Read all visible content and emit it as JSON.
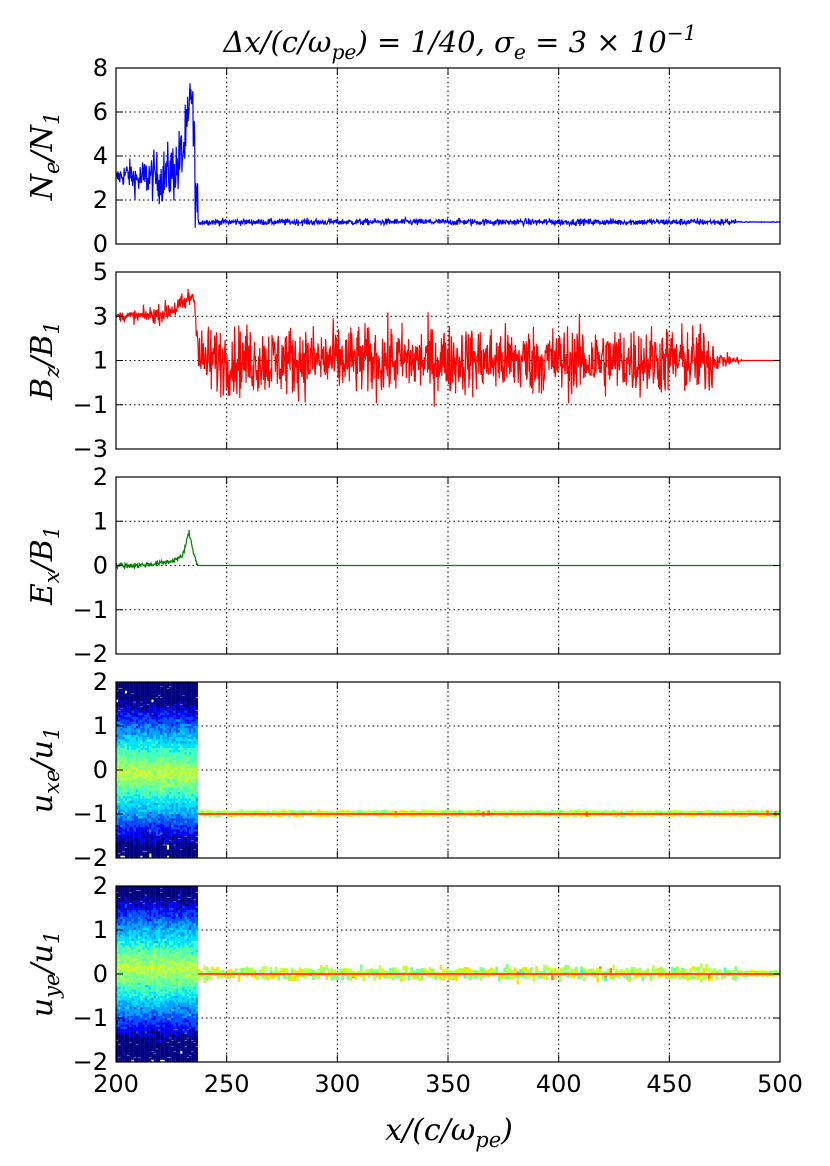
{
  "title": "Δx/(c/ω_pe) = 1/40, σ_e = 3 × 10^-1",
  "title_parts": {
    "a": "Δx/(c/ω",
    "a_sub": "pe",
    "b": ") = 1/40, σ",
    "b_sub": "e",
    "c": " = 3 × 10",
    "c_sup": "−1"
  },
  "colors": {
    "Ne": "#0000ff",
    "Bz": "#ff0000",
    "Ex": "#007f00"
  },
  "chart_data": [
    {
      "type": "line",
      "name": "Ne-panel",
      "ylabel": {
        "main": "N",
        "sub": "e",
        "rest": "/N",
        "sub2": "1"
      },
      "xlim": [
        200,
        500
      ],
      "ylim": [
        0,
        8
      ],
      "yticks": [
        "0",
        "2",
        "4",
        "6",
        "8"
      ],
      "grid": true,
      "x": [
        200,
        205,
        210,
        215,
        220,
        225,
        228,
        231,
        233,
        234,
        235,
        236,
        237,
        238,
        240,
        250,
        300,
        350,
        400,
        450,
        500
      ],
      "y": [
        3.0,
        3.2,
        2.9,
        3.1,
        3.0,
        3.3,
        3.5,
        4.5,
        5.5,
        7.5,
        5.0,
        2.5,
        1.0,
        1.0,
        1.0,
        1.0,
        1.0,
        1.0,
        1.0,
        1.0,
        1.0
      ]
    },
    {
      "type": "line",
      "name": "Bz-panel",
      "ylabel": {
        "main": "B",
        "sub": "z",
        "rest": "/B",
        "sub2": "1"
      },
      "xlim": [
        200,
        500
      ],
      "ylim": [
        -3,
        5
      ],
      "yticks": [
        "−3",
        "−1",
        "1",
        "3",
        "5"
      ],
      "grid": true,
      "x": [
        200,
        210,
        220,
        230,
        235,
        238,
        240,
        260,
        300,
        350,
        400,
        450,
        470,
        480,
        490,
        500
      ],
      "y": [
        3.0,
        3.0,
        3.1,
        3.5,
        4.0,
        1.0,
        1.0,
        1.0,
        1.0,
        1.0,
        1.0,
        1.0,
        1.0,
        1.0,
        1.0,
        1.0
      ]
    },
    {
      "type": "line",
      "name": "Ex-panel",
      "ylabel": {
        "main": "E",
        "sub": "x",
        "rest": "/B",
        "sub2": "1"
      },
      "xlim": [
        200,
        500
      ],
      "ylim": [
        -2,
        2
      ],
      "yticks": [
        "−2",
        "−1",
        "0",
        "1",
        "2"
      ],
      "grid": true,
      "x": [
        200,
        210,
        220,
        225,
        230,
        233,
        235,
        237,
        240,
        300,
        400,
        500
      ],
      "y": [
        0.0,
        0.0,
        0.05,
        0.1,
        0.2,
        0.75,
        0.3,
        0.0,
        0.0,
        0.0,
        0.0,
        0.0
      ]
    },
    {
      "type": "heatmap",
      "name": "uxe-panel",
      "ylabel": {
        "main": "u",
        "sub": "xe",
        "rest": "/u",
        "sub2": "1"
      },
      "xlim": [
        200,
        500
      ],
      "ylim": [
        -2,
        2
      ],
      "yticks": [
        "−2",
        "−1",
        "0",
        "1",
        "2"
      ],
      "xticks": [
        "200",
        "250",
        "300",
        "350",
        "400",
        "450",
        "500"
      ],
      "grid": true,
      "beam_value": -1
    },
    {
      "type": "heatmap",
      "name": "uye-panel",
      "ylabel": {
        "main": "u",
        "sub": "ye",
        "rest": "/u",
        "sub2": "1"
      },
      "xlim": [
        200,
        500
      ],
      "ylim": [
        -2,
        2
      ],
      "yticks": [
        "−2",
        "−1",
        "0",
        "1",
        "2"
      ],
      "xticks": [
        "200",
        "250",
        "300",
        "350",
        "400",
        "450",
        "500"
      ],
      "grid": true,
      "beam_value": 0
    }
  ],
  "xlabel": {
    "main": "x/(c/ω",
    "sub": "pe",
    "rest": ")"
  }
}
